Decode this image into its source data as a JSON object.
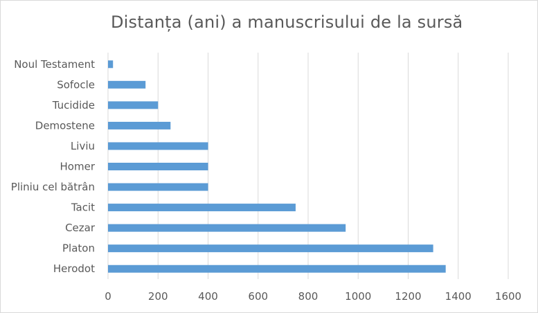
{
  "chart_data": {
    "type": "bar",
    "orientation": "horizontal",
    "title": "Distanța (ani) a manuscrisului de la sursă",
    "xlabel": "",
    "ylabel": "",
    "xlim": [
      0,
      1600
    ],
    "xticks": [
      0,
      200,
      400,
      600,
      800,
      1000,
      1200,
      1400,
      1600
    ],
    "grid": "vertical",
    "legend": "none",
    "bar_color": "#5b9bd5",
    "categories": [
      "Noul Testament",
      "Sofocle",
      "Tucidide",
      "Demostene",
      "Liviu",
      "Homer",
      "Pliniu cel bătrân",
      "Tacit",
      "Cezar",
      "Platon",
      "Herodot"
    ],
    "values": [
      20,
      150,
      200,
      250,
      400,
      400,
      400,
      750,
      950,
      1300,
      1350
    ]
  }
}
